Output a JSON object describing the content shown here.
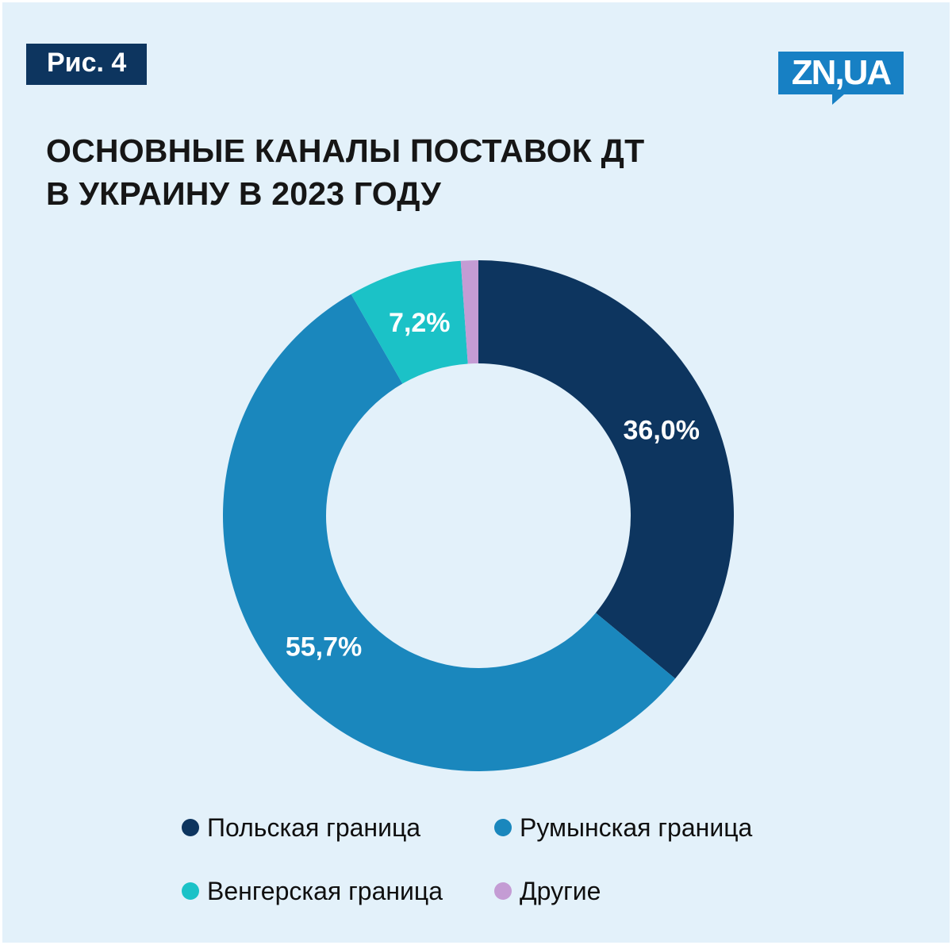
{
  "header": {
    "figure_label": "Рис. 4",
    "logo_text": "ZN,UA"
  },
  "title": {
    "line1": "ОСНОВНЫЕ КАНАЛЫ ПОСТАВОК ДТ",
    "line2": "В УКРАИНУ В 2023 ГОДУ"
  },
  "chart_data": {
    "type": "pie",
    "subtype": "donut",
    "title": "Основные каналы поставок ДТ в Украину в 2023 году",
    "categories": [
      "Польская граница",
      "Румынская граница",
      "Венгерская граница",
      "Другие"
    ],
    "values": [
      36.0,
      55.7,
      7.2,
      1.1
    ],
    "value_labels": [
      "36,0%",
      "55,7%",
      "7,2%",
      ""
    ],
    "colors": [
      "#0d355f",
      "#1a87bd",
      "#1bc2c7",
      "#c49cd4"
    ],
    "start_angle_deg": 0,
    "direction": "clockwise",
    "legend_position": "bottom"
  },
  "colors": {
    "background": "#e3f1fa",
    "badge_bg": "#0d355f",
    "badge_text": "#ffffff",
    "logo_bg": "#1780c4",
    "logo_text": "#ffffff",
    "title_text": "#161616",
    "slice_label_text": "#ffffff"
  }
}
